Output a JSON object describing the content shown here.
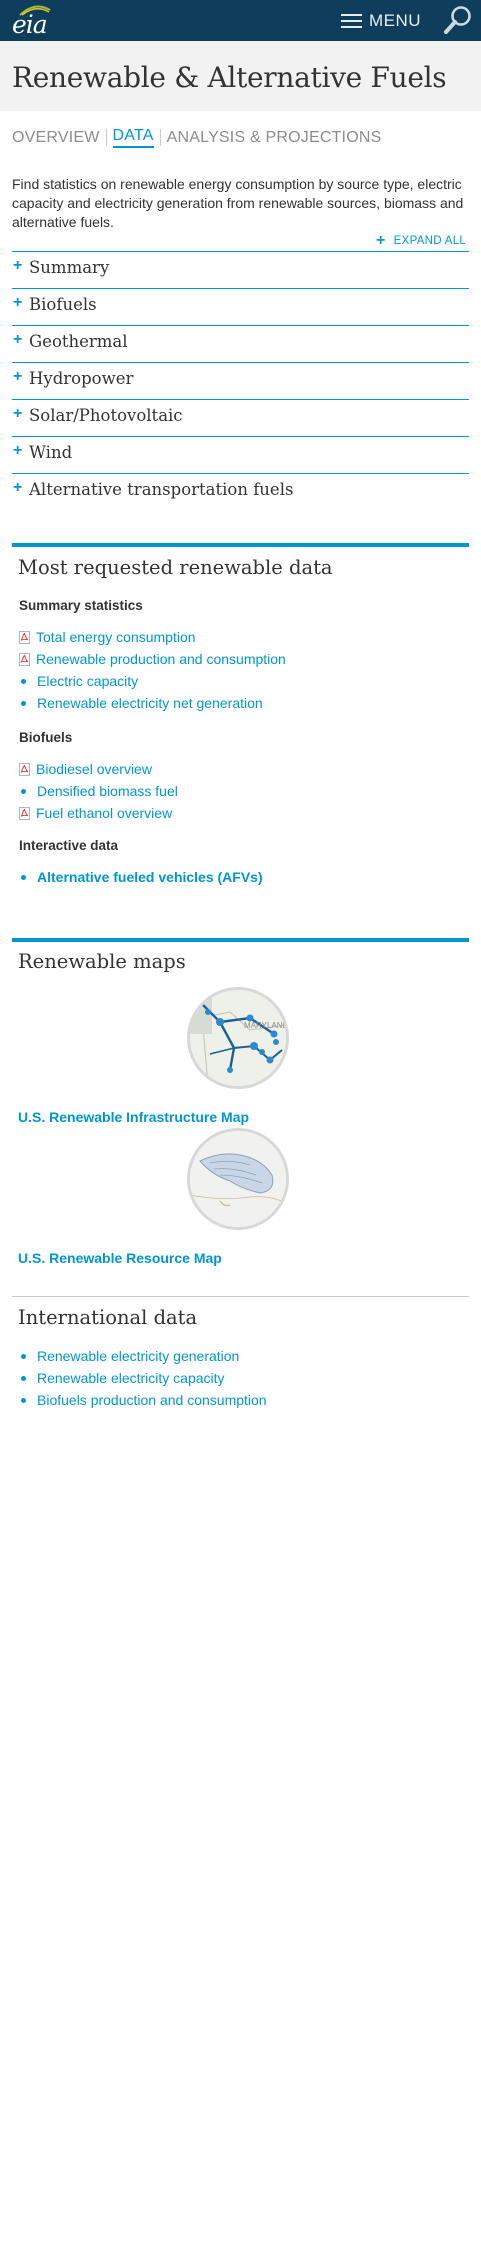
{
  "header": {
    "logo_text": "eia",
    "menu_label": "MENU"
  },
  "page": {
    "title": "Renewable & Alternative Fuels"
  },
  "tabs": [
    {
      "label": "OVERVIEW",
      "active": false
    },
    {
      "label": "DATA",
      "active": true
    },
    {
      "label": "ANALYSIS & PROJECTIONS",
      "active": false
    }
  ],
  "intro": "Find statistics on renewable energy consumption by source type, electric capacity and electricity generation from renewable sources, biomass and alternative fuels.",
  "expand_all_label": "EXPAND ALL",
  "accordion": [
    {
      "label": "Summary"
    },
    {
      "label": "Biofuels"
    },
    {
      "label": "Geothermal"
    },
    {
      "label": "Hydropower"
    },
    {
      "label": "Solar/Photovoltaic"
    },
    {
      "label": "Wind"
    },
    {
      "label": "Alternative transportation fuels"
    }
  ],
  "most_requested": {
    "title": "Most requested renewable data",
    "groups": [
      {
        "heading": "Summary statistics",
        "items": [
          {
            "label": "Total energy consumption",
            "icon": "pdf-icon"
          },
          {
            "label": "Renewable production and consumption",
            "icon": "pdf-icon"
          },
          {
            "label": "Electric capacity",
            "icon": "bullet"
          },
          {
            "label": "Renewable electricity net generation",
            "icon": "bullet"
          }
        ]
      },
      {
        "heading": "Biofuels",
        "items": [
          {
            "label": "Biodiesel overview",
            "icon": "pdf-icon"
          },
          {
            "label": "Densified biomass fuel",
            "icon": "bullet"
          },
          {
            "label": "Fuel ethanol overview",
            "icon": "pdf-icon"
          }
        ]
      },
      {
        "heading": "Interactive data",
        "items": [
          {
            "label": "Alternative fueled vehicles (AFVs)",
            "icon": "bullet"
          }
        ]
      }
    ]
  },
  "maps": {
    "title": "Renewable maps",
    "items": [
      {
        "label": "U.S. Renewable Infrastructure Map",
        "thumb_text": "MARYLAND"
      },
      {
        "label": "U.S. Renewable Resource Map"
      }
    ]
  },
  "international": {
    "title": "International data",
    "items": [
      {
        "label": "Renewable electricity generation"
      },
      {
        "label": "Renewable electricity capacity"
      },
      {
        "label": "Biofuels production and consumption"
      }
    ]
  },
  "colors": {
    "header_bg": "#0f3d5c",
    "accent": "#0096d6",
    "title_band": "#f2f2f2",
    "text": "#333333"
  }
}
